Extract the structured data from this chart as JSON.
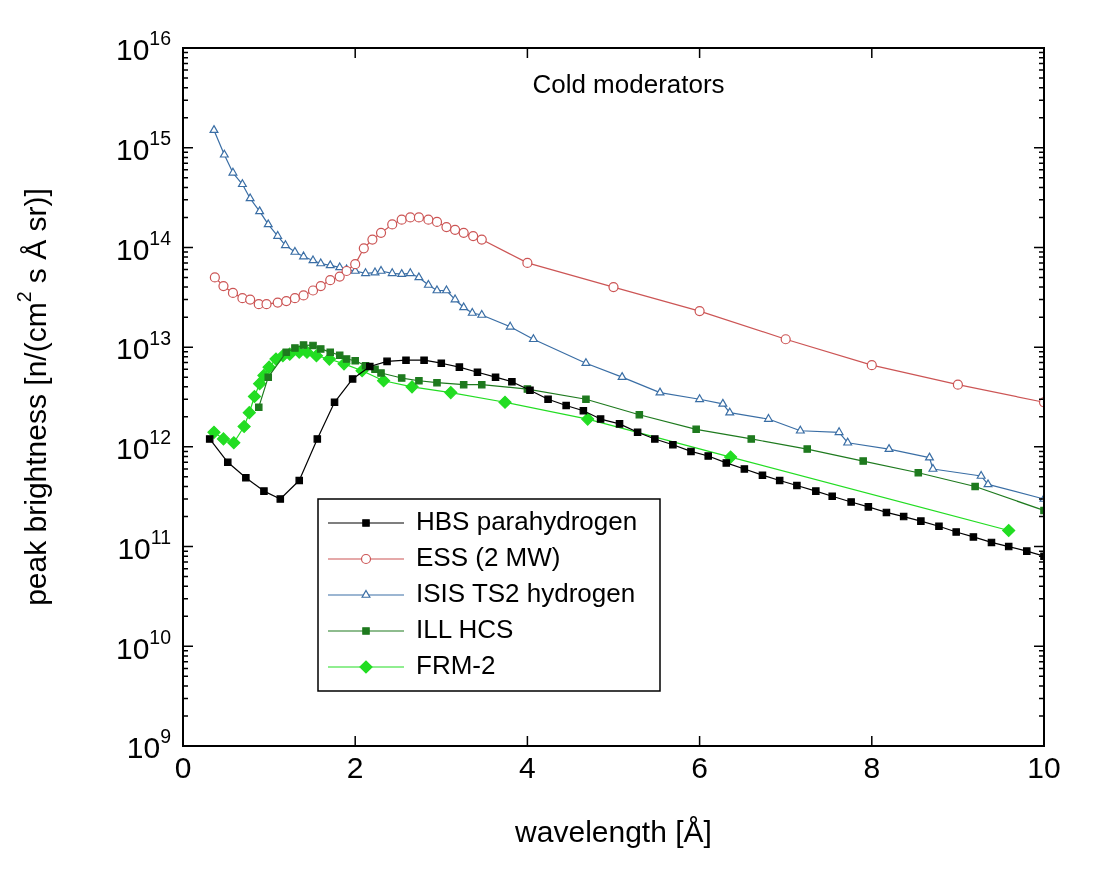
{
  "chart_data": {
    "type": "line",
    "title": "Cold moderators",
    "xlabel": "wavelength [Å]",
    "ylabel": "peak brightness [n/(cm$^{2}$ s Å sr)]",
    "xlim": [
      0,
      10
    ],
    "xticks": [
      0,
      2,
      4,
      6,
      8,
      10
    ],
    "ylim": [
      1000000000.0,
      1e+16
    ],
    "yticks": [
      {
        "value": 1000000000.0,
        "label": "10$^{9}$"
      },
      {
        "value": 10000000000.0,
        "label": "10$^{10}$"
      },
      {
        "value": 100000000000.0,
        "label": "10$^{11}$"
      },
      {
        "value": 1000000000000.0,
        "label": "10$^{12}$"
      },
      {
        "value": 10000000000000.0,
        "label": "10$^{13}$"
      },
      {
        "value": 100000000000000.0,
        "label": "10$^{14}$"
      },
      {
        "value": 1000000000000000.0,
        "label": "10$^{15}$"
      },
      {
        "value": 1e+16,
        "label": "10$^{16}$"
      }
    ],
    "log": "y",
    "grid": false,
    "legend": "bottom left",
    "line_style": "solid",
    "series": [
      {
        "name": "HBS parahydrogen",
        "color": "#000000",
        "marker": "square",
        "x": [
          0.31,
          0.52,
          0.73,
          0.94,
          1.13,
          1.35,
          1.56,
          1.76,
          1.97,
          2.17,
          2.37,
          2.59,
          2.8,
          3.0,
          3.21,
          3.42,
          3.63,
          3.82,
          4.03,
          4.24,
          4.45,
          4.65,
          4.85,
          5.07,
          5.28,
          5.48,
          5.69,
          5.9,
          6.1,
          6.31,
          6.52,
          6.73,
          6.93,
          7.13,
          7.35,
          7.54,
          7.76,
          7.96,
          8.17,
          8.37,
          8.57,
          8.78,
          8.98,
          9.18,
          9.39,
          9.59,
          9.8,
          10.0
        ],
        "values": [
          1200000000000.0,
          700000000000.0,
          490000000000.0,
          360000000000.0,
          300000000000.0,
          460000000000.0,
          1200000000000.0,
          2800000000000.0,
          4800000000000.0,
          6400000000000.0,
          7200000000000.0,
          7400000000000.0,
          7400000000000.0,
          6900000000000.0,
          6300000000000.0,
          5600000000000.0,
          5000000000000.0,
          4500000000000.0,
          3700000000000.0,
          3000000000000.0,
          2600000000000.0,
          2300000000000.0,
          1900000000000.0,
          1700000000000.0,
          1400000000000.0,
          1200000000000.0,
          1050000000000.0,
          900000000000.0,
          810000000000.0,
          690000000000.0,
          600000000000.0,
          520000000000.0,
          460000000000.0,
          410000000000.0,
          360000000000.0,
          320000000000.0,
          280000000000.0,
          250000000000.0,
          220000000000.0,
          200000000000.0,
          180000000000.0,
          160000000000.0,
          140000000000.0,
          125000000000.0,
          110000000000.0,
          100000000000.0,
          90000000000.0,
          80000000000.0
        ]
      },
      {
        "name": "ESS (2 MW)",
        "color": "#cc5555",
        "marker": "circle",
        "x": [
          0.37,
          0.47,
          0.58,
          0.69,
          0.78,
          0.88,
          0.97,
          1.1,
          1.2,
          1.3,
          1.4,
          1.51,
          1.6,
          1.71,
          1.82,
          1.9,
          2.0,
          2.1,
          2.2,
          2.3,
          2.43,
          2.54,
          2.64,
          2.74,
          2.85,
          2.95,
          3.06,
          3.16,
          3.26,
          3.37,
          3.47,
          4,
          5,
          6,
          7,
          8,
          9,
          10
        ],
        "values": [
          50000000000000.0,
          41000000000000.0,
          35000000000000.0,
          31000000000000.0,
          30000000000000.0,
          27000000000000.0,
          27000000000000.0,
          28000000000000.0,
          29000000000000.0,
          31000000000000.0,
          33000000000000.0,
          37000000000000.0,
          41000000000000.0,
          47000000000000.0,
          51000000000000.0,
          58000000000000.0,
          68000000000000.0,
          98000000000000.0,
          120000000000000.0,
          140000000000000.0,
          170000000000000.0,
          190000000000000.0,
          200000000000000.0,
          200000000000000.0,
          190000000000000.0,
          180000000000000.0,
          160000000000000.0,
          150000000000000.0,
          140000000000000.0,
          130000000000000.0,
          120000000000000.0,
          70000000000000.0,
          40000000000000.0,
          23000000000000.0,
          12000000000000.0,
          6600000000000.0,
          4200000000000.0,
          2800000000000.0
        ]
      },
      {
        "name": "ISIS TS2 hydrogen",
        "color": "#3a6ea5",
        "marker": "triangle",
        "x": [
          0.36,
          0.48,
          0.58,
          0.69,
          0.78,
          0.89,
          0.99,
          1.1,
          1.19,
          1.3,
          1.4,
          1.51,
          1.6,
          1.71,
          1.82,
          1.9,
          2.0,
          2.12,
          2.23,
          2.3,
          2.43,
          2.54,
          2.64,
          2.74,
          2.85,
          2.95,
          3.06,
          3.16,
          3.26,
          3.36,
          3.47,
          3.8,
          4.07,
          4.68,
          5.1,
          5.54,
          6.0,
          6.27,
          6.35,
          6.8,
          7.17,
          7.62,
          7.72,
          8.2,
          8.67,
          8.71,
          9.27,
          9.35,
          10
        ],
        "values": [
          1500000000000000.0,
          850000000000000.0,
          560000000000000.0,
          430000000000000.0,
          310000000000000.0,
          230000000000000.0,
          170000000000000.0,
          130000000000000.0,
          105000000000000.0,
          90000000000000.0,
          81000000000000.0,
          74000000000000.0,
          69000000000000.0,
          66000000000000.0,
          63000000000000.0,
          60000000000000.0,
          58000000000000.0,
          55000000000000.0,
          56000000000000.0,
          58000000000000.0,
          55000000000000.0,
          54000000000000.0,
          55000000000000.0,
          50000000000000.0,
          42000000000000.0,
          37000000000000.0,
          37000000000000.0,
          30000000000000.0,
          25000000000000.0,
          22000000000000.0,
          21000000000000.0,
          16000000000000.0,
          12000000000000.0,
          6900000000000.0,
          5000000000000.0,
          3500000000000.0,
          3000000000000.0,
          2700000000000.0,
          2200000000000.0,
          1900000000000.0,
          1450000000000.0,
          1400000000000.0,
          1100000000000.0,
          950000000000.0,
          780000000000.0,
          600000000000.0,
          510000000000.0,
          420000000000.0,
          300000000000.0
        ]
      },
      {
        "name": "ILL HCS",
        "color": "#1e7a1e",
        "marker": "square",
        "x": [
          0.88,
          0.99,
          1.2,
          1.3,
          1.4,
          1.51,
          1.6,
          1.71,
          1.82,
          1.9,
          2.0,
          2.12,
          2.23,
          2.3,
          2.54,
          2.74,
          2.95,
          3.26,
          3.47,
          4.0,
          4.68,
          5.3,
          5.96,
          6.6,
          7.25,
          7.9,
          8.54,
          9.2,
          10
        ],
        "values": [
          2500000000000.0,
          5000000000000.0,
          8900000000000.0,
          9800000000000.0,
          10500000000000.0,
          10400000000000.0,
          9600000000000.0,
          8900000000000.0,
          8300000000000.0,
          7600000000000.0,
          7300000000000.0,
          6500000000000.0,
          6000000000000.0,
          5500000000000.0,
          4900000000000.0,
          4600000000000.0,
          4400000000000.0,
          4200000000000.0,
          4200000000000.0,
          3800000000000.0,
          3000000000000.0,
          2100000000000.0,
          1500000000000.0,
          1200000000000.0,
          950000000000.0,
          720000000000.0,
          550000000000.0,
          400000000000.0,
          230000000000.0
        ]
      },
      {
        "name": "FRM-2",
        "color": "#22dd22",
        "marker": "diamond",
        "x": [
          0.36,
          0.47,
          0.59,
          0.71,
          0.77,
          0.83,
          0.89,
          0.94,
          1.0,
          1.08,
          1.16,
          1.24,
          1.35,
          1.44,
          1.55,
          1.7,
          1.87,
          2.08,
          2.33,
          2.66,
          3.11,
          3.74,
          4.7,
          6.36,
          9.59
        ],
        "values": [
          1400000000000.0,
          1200000000000.0,
          1100000000000.0,
          1600000000000.0,
          2200000000000.0,
          3200000000000.0,
          4300000000000.0,
          5200000000000.0,
          6300000000000.0,
          7600000000000.0,
          8200000000000.0,
          8500000000000.0,
          8900000000000.0,
          8900000000000.0,
          8200000000000.0,
          7600000000000.0,
          6800000000000.0,
          5800000000000.0,
          4600000000000.0,
          4000000000000.0,
          3500000000000.0,
          2800000000000.0,
          1900000000000.0,
          790000000000.0,
          145000000000.0
        ]
      }
    ]
  }
}
